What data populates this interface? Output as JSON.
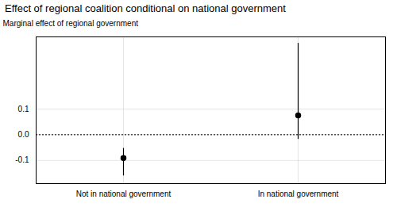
{
  "chart_data": {
    "type": "errorbar",
    "title": "Effect of regional coalition conditional on national government",
    "ylabel": "Marginal effect of regional government",
    "categories": [
      "Not in national government",
      "In national government"
    ],
    "values": [
      -0.091,
      0.075
    ],
    "ci_lower": [
      -0.16,
      -0.018
    ],
    "ci_upper": [
      -0.053,
      0.355
    ],
    "ylim": [
      -0.19,
      0.38
    ],
    "yticks": [
      -0.1,
      {
        "value": 0,
        "label": "0.0"
      },
      0.1
    ],
    "hline": 0,
    "grid": true,
    "color": "black"
  }
}
